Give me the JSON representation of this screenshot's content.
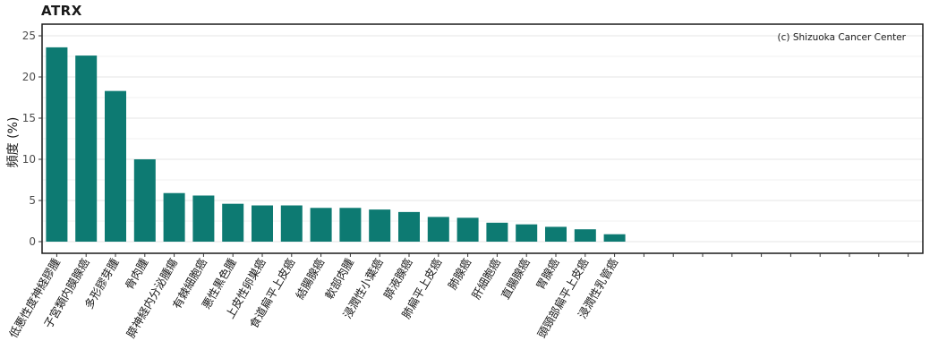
{
  "chart_data": {
    "type": "bar",
    "title": "ATRX",
    "ylabel": "頻度 (%)",
    "annotation": "(c) Shizuoka Cancer Center",
    "ylim": [
      0,
      26
    ],
    "yticks": [
      0,
      5,
      10,
      15,
      20,
      25
    ],
    "color": "#0d7a72",
    "categories": [
      "低悪性度神経膠腫",
      "子宮類内膜腺癌",
      "多形膠芽腫",
      "骨肉腫",
      "膵神経内分泌腫瘍",
      "有棘細胞癌",
      "悪性黒色腫",
      "上皮性卵巣癌",
      "食道扁平上皮癌",
      "結腸腺癌",
      "軟部肉腫",
      "浸潤性小葉癌",
      "膵液腺癌",
      "肺扁平上皮癌",
      "肺腺癌",
      "肝細胞癌",
      "直腸腺癌",
      "胃腺癌",
      "頭頸部扁平上皮癌",
      "浸潤性乳管癌",
      "",
      "",
      "",
      "",
      "",
      "",
      "",
      "",
      "",
      ""
    ],
    "values": [
      23.6,
      22.6,
      18.3,
      10.0,
      5.9,
      5.6,
      4.6,
      4.4,
      4.4,
      4.1,
      4.1,
      3.9,
      3.6,
      3.0,
      2.9,
      2.3,
      2.1,
      1.8,
      1.5,
      0.9,
      0,
      0,
      0,
      0,
      0,
      0,
      0,
      0,
      0,
      0
    ]
  }
}
